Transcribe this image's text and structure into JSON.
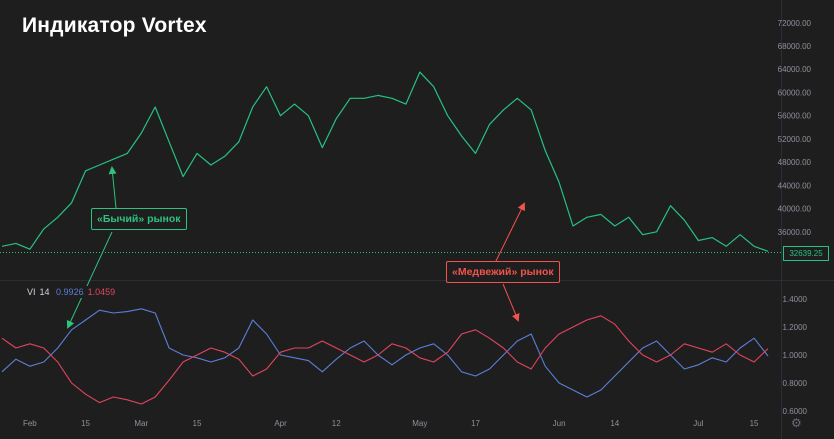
{
  "title": "Индикатор Vortex",
  "annotations": {
    "bull": "«Бычий» рынок",
    "bear": "«Медвежий» рынок"
  },
  "indicator_legend": {
    "name": "VI",
    "period": "14",
    "vi_plus": "0.9926",
    "vi_minus": "1.0459"
  },
  "last_price_label": "32639.25",
  "colors": {
    "background": "#1e1e1f",
    "price": "#26c281",
    "vi_plus": "#5b7fd6",
    "vi_minus": "#e0455c",
    "bull_annotation": "#2ec27e",
    "bear_annotation": "#f0544c"
  },
  "settings_icon": "gear-icon",
  "chart_data": [
    {
      "type": "line",
      "series": [
        {
          "x": [
            0,
            3,
            6,
            9,
            12,
            15,
            18,
            21,
            24,
            27,
            30,
            33,
            36,
            39,
            42,
            45,
            48,
            51,
            54,
            57,
            60,
            63,
            66,
            69,
            72,
            75,
            78,
            81,
            84,
            87,
            90,
            93,
            96,
            99,
            102,
            105,
            108,
            111,
            114,
            117,
            120,
            123,
            126,
            129,
            132,
            135,
            138,
            141,
            144,
            147,
            150,
            153,
            156,
            159,
            162,
            165
          ],
          "values": [
            33500,
            34000,
            33000,
            36500,
            38500,
            41000,
            46500,
            47500,
            48500,
            49500,
            53000,
            57500,
            51500,
            45500,
            49500,
            47500,
            49000,
            51500,
            57500,
            61000,
            56000,
            58000,
            56000,
            50500,
            55500,
            59000,
            59000,
            59500,
            59000,
            58000,
            63500,
            61000,
            56000,
            52500,
            49500,
            54500,
            57000,
            59000,
            57000,
            50000,
            44500,
            37000,
            38500,
            39000,
            37000,
            38500,
            35500,
            36000,
            40500,
            38000,
            34500,
            35000,
            33500,
            35500,
            33500,
            32639.25
          ],
          "color": "#26c281"
        }
      ],
      "y_ticks": [
        "72000.00",
        "68000.00",
        "64000.00",
        "60000.00",
        "56000.00",
        "52000.00",
        "48000.00",
        "44000.00",
        "40000.00",
        "36000.00"
      ],
      "ylim": [
        32000,
        73000
      ],
      "grid": false
    },
    {
      "type": "line",
      "series": [
        {
          "name": "VI 14 +",
          "x": [
            0,
            3,
            6,
            9,
            12,
            15,
            18,
            21,
            24,
            27,
            30,
            33,
            36,
            39,
            42,
            45,
            48,
            51,
            54,
            57,
            60,
            63,
            66,
            69,
            72,
            75,
            78,
            81,
            84,
            87,
            90,
            93,
            96,
            99,
            102,
            105,
            108,
            111,
            114,
            117,
            120,
            123,
            126,
            129,
            132,
            135,
            138,
            141,
            144,
            147,
            150,
            153,
            156,
            159,
            162,
            165
          ],
          "values": [
            0.88,
            0.97,
            0.92,
            0.95,
            1.05,
            1.18,
            1.25,
            1.32,
            1.3,
            1.31,
            1.33,
            1.3,
            1.05,
            1.0,
            0.98,
            0.95,
            0.98,
            1.05,
            1.25,
            1.15,
            1.0,
            0.98,
            0.96,
            0.88,
            0.97,
            1.05,
            1.1,
            1.0,
            0.93,
            1.0,
            1.05,
            1.08,
            1.0,
            0.88,
            0.85,
            0.9,
            1.0,
            1.1,
            1.15,
            0.92,
            0.8,
            0.75,
            0.7,
            0.75,
            0.85,
            0.95,
            1.05,
            1.1,
            1.0,
            0.9,
            0.93,
            0.98,
            0.95,
            1.05,
            1.12,
            0.9926
          ],
          "color": "#5b7fd6"
        },
        {
          "name": "VI 14 −",
          "x": [
            0,
            3,
            6,
            9,
            12,
            15,
            18,
            21,
            24,
            27,
            30,
            33,
            36,
            39,
            42,
            45,
            48,
            51,
            54,
            57,
            60,
            63,
            66,
            69,
            72,
            75,
            78,
            81,
            84,
            87,
            90,
            93,
            96,
            99,
            102,
            105,
            108,
            111,
            114,
            117,
            120,
            123,
            126,
            129,
            132,
            135,
            138,
            141,
            144,
            147,
            150,
            153,
            156,
            159,
            162,
            165
          ],
          "values": [
            1.12,
            1.05,
            1.08,
            1.05,
            0.95,
            0.8,
            0.72,
            0.66,
            0.7,
            0.68,
            0.65,
            0.7,
            0.82,
            0.95,
            1.0,
            1.05,
            1.02,
            0.97,
            0.85,
            0.9,
            1.02,
            1.05,
            1.05,
            1.1,
            1.05,
            1.0,
            0.95,
            1.0,
            1.08,
            1.05,
            0.98,
            0.95,
            1.02,
            1.15,
            1.18,
            1.12,
            1.05,
            0.95,
            0.9,
            1.05,
            1.15,
            1.2,
            1.25,
            1.28,
            1.22,
            1.1,
            1.0,
            0.95,
            1.0,
            1.08,
            1.05,
            1.02,
            1.08,
            1.0,
            0.95,
            1.0459
          ],
          "color": "#e0455c"
        }
      ],
      "y_ticks": [
        "1.4000",
        "1.2000",
        "1.0000",
        "0.8000",
        "0.6000"
      ],
      "ylim": [
        0.6,
        1.42
      ],
      "grid": false
    }
  ],
  "x_axis": {
    "x": [
      6,
      18,
      30,
      42,
      60,
      72,
      90,
      102,
      120,
      132,
      150,
      162
    ],
    "labels": [
      "Feb",
      "15",
      "Mar",
      "15",
      "Apr",
      "12",
      "May",
      "17",
      "Jun",
      "14",
      "Jul",
      "15"
    ]
  }
}
